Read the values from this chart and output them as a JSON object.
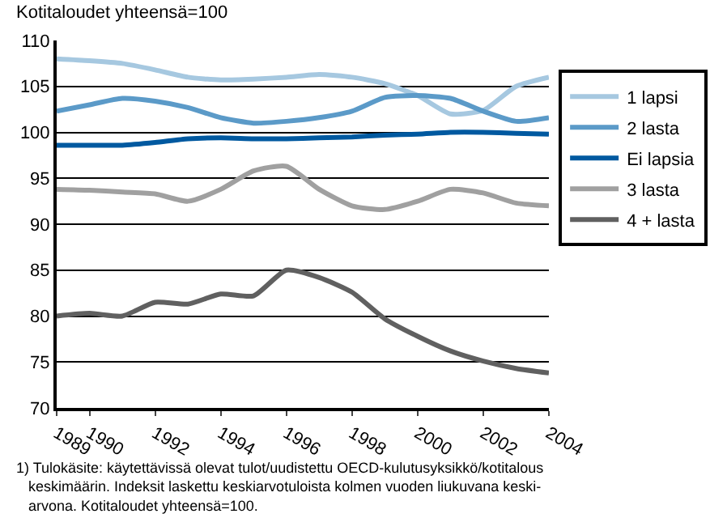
{
  "chart_data": {
    "type": "line",
    "ylabel": "Kotitaloudet yhteensä=100",
    "x": [
      1989,
      1990,
      1991,
      1992,
      1993,
      1994,
      1995,
      1996,
      1997,
      1998,
      1999,
      2000,
      2001,
      2002,
      2003,
      2004
    ],
    "series": [
      {
        "name": "1 lapsi",
        "color": "#a6c8e0",
        "values": [
          108.0,
          107.8,
          107.5,
          106.8,
          106.0,
          105.7,
          105.8,
          106.0,
          106.3,
          106.0,
          105.3,
          104.0,
          102.0,
          102.4,
          105.0,
          106.0
        ]
      },
      {
        "name": "2 lasta",
        "color": "#5b9ac8",
        "values": [
          102.3,
          103.0,
          103.7,
          103.4,
          102.7,
          101.6,
          101.0,
          101.2,
          101.6,
          102.3,
          103.8,
          104.0,
          103.7,
          102.3,
          101.2,
          101.6
        ]
      },
      {
        "name": "Ei lapsia",
        "color": "#0059a0",
        "values": [
          98.6,
          98.6,
          98.6,
          98.9,
          99.3,
          99.4,
          99.3,
          99.3,
          99.4,
          99.5,
          99.7,
          99.8,
          100.0,
          100.0,
          99.9,
          99.8
        ]
      },
      {
        "name": "3 lasta",
        "color": "#a0a0a0",
        "values": [
          93.8,
          93.7,
          93.5,
          93.3,
          92.5,
          93.8,
          95.8,
          96.3,
          93.8,
          92.0,
          91.6,
          92.5,
          93.8,
          93.4,
          92.3,
          92.0
        ]
      },
      {
        "name": "4 + lasta",
        "color": "#606060",
        "values": [
          80.0,
          80.3,
          80.0,
          81.5,
          81.3,
          82.4,
          82.2,
          85.0,
          84.2,
          82.6,
          79.7,
          77.8,
          76.2,
          75.1,
          74.3,
          73.8
        ]
      }
    ],
    "xlim": [
      1989,
      2004
    ],
    "xticks": [
      1989,
      1990,
      1992,
      1994,
      1996,
      1998,
      2000,
      2002,
      2004
    ],
    "ylim": [
      70,
      110
    ],
    "yticks": [
      70,
      75,
      80,
      85,
      90,
      95,
      100,
      105,
      110
    ],
    "grid": "y",
    "legend": "right",
    "marker": "none",
    "line_style": "solid",
    "annotations": [
      "1) Tulokäsite: käytettävissä olevat tulot/uudistettu OECD-kulutusyksikkö/kotitalous\n   keskimäärin. Indeksit laskettu keskiarvotuloista kolmen vuoden liukuvana keski-\n   arvona. Kotitaloudet yhteensä=100."
    ]
  }
}
